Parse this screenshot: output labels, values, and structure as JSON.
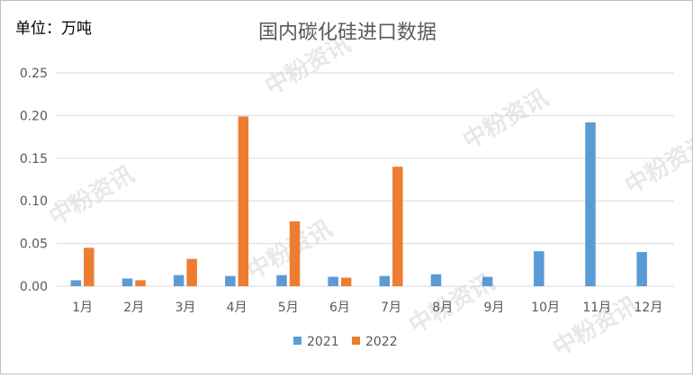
{
  "chart_data": {
    "type": "bar",
    "title": "国内碳化硅进口数据",
    "unit_label": "单位：万吨",
    "categories": [
      "1月",
      "2月",
      "3月",
      "4月",
      "5月",
      "6月",
      "7月",
      "8月",
      "9月",
      "10月",
      "11月",
      "12月"
    ],
    "series": [
      {
        "name": "2021",
        "color": "#5b9bd5",
        "values": [
          0.007,
          0.009,
          0.013,
          0.012,
          0.013,
          0.011,
          0.012,
          0.014,
          0.011,
          0.041,
          0.192,
          0.04
        ]
      },
      {
        "name": "2022",
        "color": "#ed7d31",
        "values": [
          0.045,
          0.007,
          0.032,
          0.199,
          0.076,
          0.01,
          0.14,
          null,
          null,
          null,
          null,
          null
        ]
      }
    ],
    "ylim": [
      0,
      0.25
    ],
    "yticks": [
      "0.00",
      "0.05",
      "0.10",
      "0.15",
      "0.20",
      "0.25"
    ],
    "grid": true,
    "legend_position": "bottom"
  },
  "watermark": {
    "text": "中粉资讯"
  }
}
